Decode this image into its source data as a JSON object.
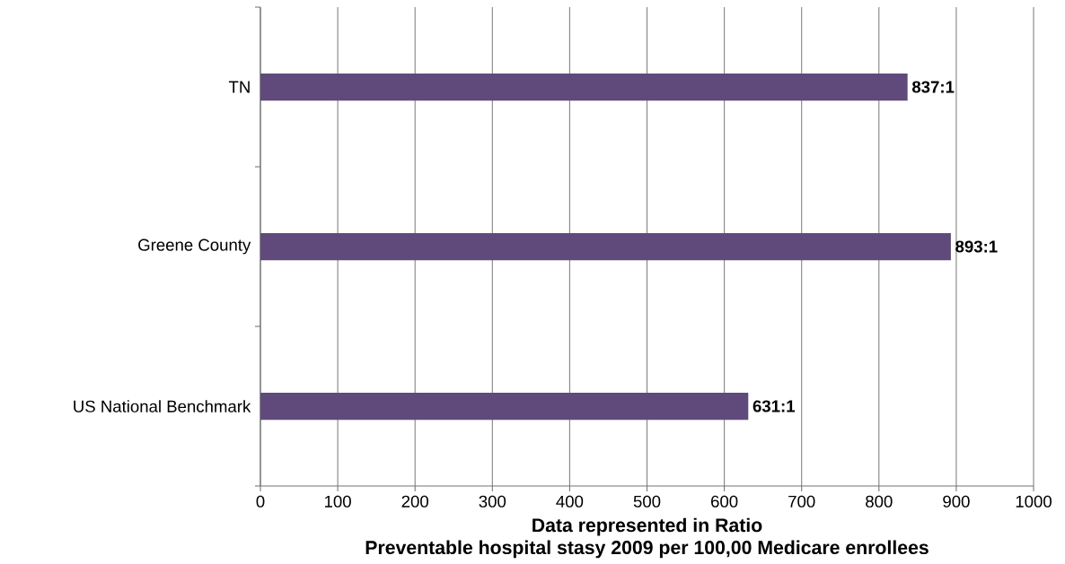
{
  "chart_data": {
    "type": "bar",
    "orientation": "horizontal",
    "categories": [
      "TN",
      "Greene County",
      "US National Benchmark"
    ],
    "values": [
      837,
      893,
      631
    ],
    "value_labels": [
      "837:1",
      "893:1",
      "631:1"
    ],
    "color": "#604a7b",
    "xlim": [
      0,
      1000
    ],
    "xticks": [
      0,
      100,
      200,
      300,
      400,
      500,
      600,
      700,
      800,
      900,
      1000
    ],
    "grid": "x",
    "xlabel": "Data represented in Ratio",
    "annotations": [
      "Preventable hospital stasy 2009 per 100,00 Medicare enrollees"
    ]
  }
}
